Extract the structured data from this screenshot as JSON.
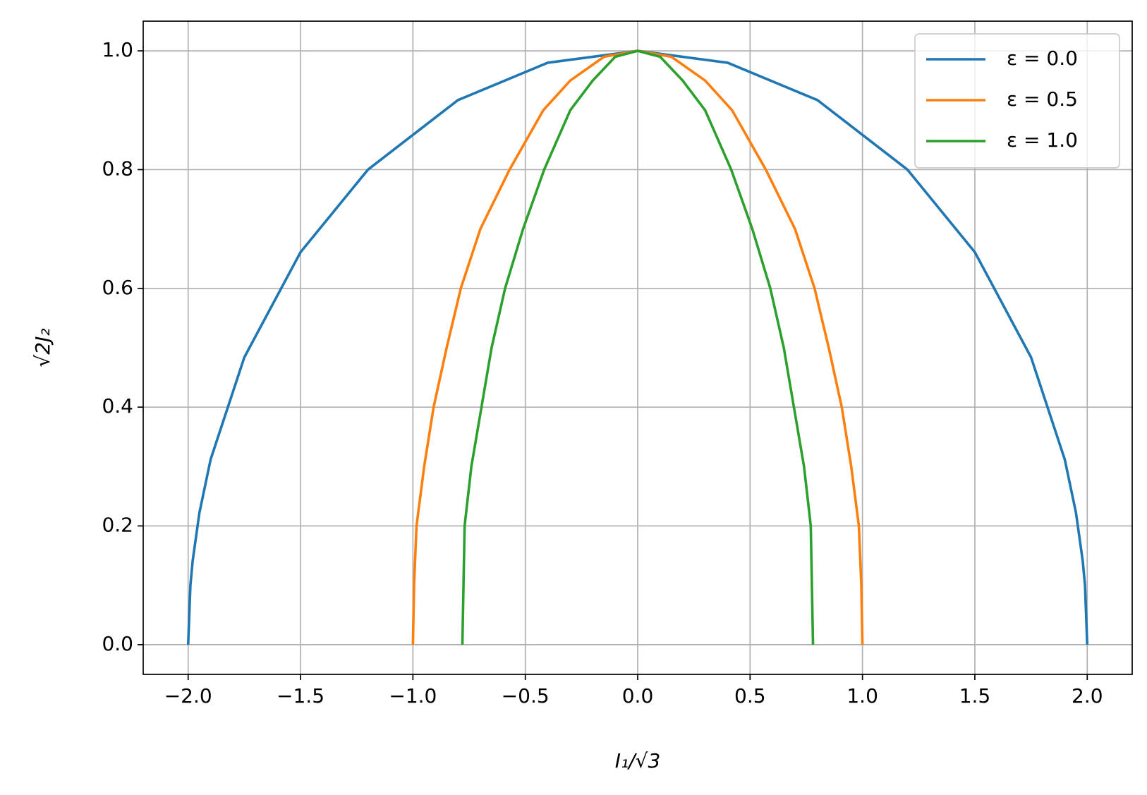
{
  "chart_data": {
    "type": "line",
    "xlabel": "I₁/√3",
    "ylabel": "√2J₂",
    "xlim": [
      -2.2,
      2.2
    ],
    "ylim": [
      -0.05,
      1.05
    ],
    "xticks": [
      {
        "value": -2.0,
        "label": "−2.0"
      },
      {
        "value": -1.5,
        "label": "−1.5"
      },
      {
        "value": -1.0,
        "label": "−1.0"
      },
      {
        "value": -0.5,
        "label": "−0.5"
      },
      {
        "value": 0.0,
        "label": "0.0"
      },
      {
        "value": 0.5,
        "label": "0.5"
      },
      {
        "value": 1.0,
        "label": "1.0"
      },
      {
        "value": 1.5,
        "label": "1.5"
      },
      {
        "value": 2.0,
        "label": "2.0"
      }
    ],
    "yticks": [
      {
        "value": 0.0,
        "label": "0.0"
      },
      {
        "value": 0.2,
        "label": "0.2"
      },
      {
        "value": 0.4,
        "label": "0.4"
      },
      {
        "value": 0.6,
        "label": "0.6"
      },
      {
        "value": 0.8,
        "label": "0.8"
      },
      {
        "value": 1.0,
        "label": "1.0"
      }
    ],
    "grid": true,
    "legend": "upper right",
    "series": [
      {
        "name": "ε = 0.0",
        "color": "#1f77b4",
        "x": [
          -2,
          -1.99,
          -1.98,
          -1.95,
          -1.9,
          -1.75,
          -1.5,
          -1.2,
          -0.8,
          -0.4,
          0,
          0.4,
          0.8,
          1.2,
          1.5,
          1.75,
          1.9,
          1.95,
          1.98,
          1.99,
          2
        ],
        "values": [
          0,
          0.1,
          0.141,
          0.222,
          0.312,
          0.484,
          0.661,
          0.8,
          0.917,
          0.98,
          1,
          0.98,
          0.917,
          0.8,
          0.661,
          0.484,
          0.312,
          0.222,
          0.141,
          0.1,
          0
        ]
      },
      {
        "name": "ε = 0.5",
        "color": "#ff7f0e",
        "x": [
          -1,
          -0.995,
          -0.984,
          -0.95,
          -0.908,
          -0.85,
          -0.787,
          -0.7,
          -0.57,
          -0.42,
          -0.3,
          -0.15,
          0,
          0.15,
          0.3,
          0.42,
          0.57,
          0.7,
          0.787,
          0.85,
          0.908,
          0.95,
          0.984,
          0.995,
          1
        ],
        "values": [
          0,
          0.1,
          0.2,
          0.3,
          0.4,
          0.5,
          0.6,
          0.7,
          0.8,
          0.9,
          0.95,
          0.99,
          1,
          0.99,
          0.95,
          0.9,
          0.8,
          0.7,
          0.6,
          0.5,
          0.4,
          0.3,
          0.2,
          0.1,
          0
        ]
      },
      {
        "name": "ε = 1.0",
        "color": "#2ca02c",
        "x": [
          -0.78,
          -0.775,
          -0.77,
          -0.74,
          -0.695,
          -0.65,
          -0.59,
          -0.51,
          -0.416,
          -0.3,
          -0.2,
          -0.1,
          0,
          0.1,
          0.2,
          0.3,
          0.416,
          0.51,
          0.59,
          0.65,
          0.695,
          0.74,
          0.77,
          0.775,
          0.78
        ],
        "values": [
          0,
          0.1,
          0.2,
          0.3,
          0.4,
          0.5,
          0.6,
          0.7,
          0.8,
          0.9,
          0.95,
          0.99,
          1,
          0.99,
          0.95,
          0.9,
          0.8,
          0.7,
          0.6,
          0.5,
          0.4,
          0.3,
          0.2,
          0.1,
          0
        ]
      }
    ]
  }
}
